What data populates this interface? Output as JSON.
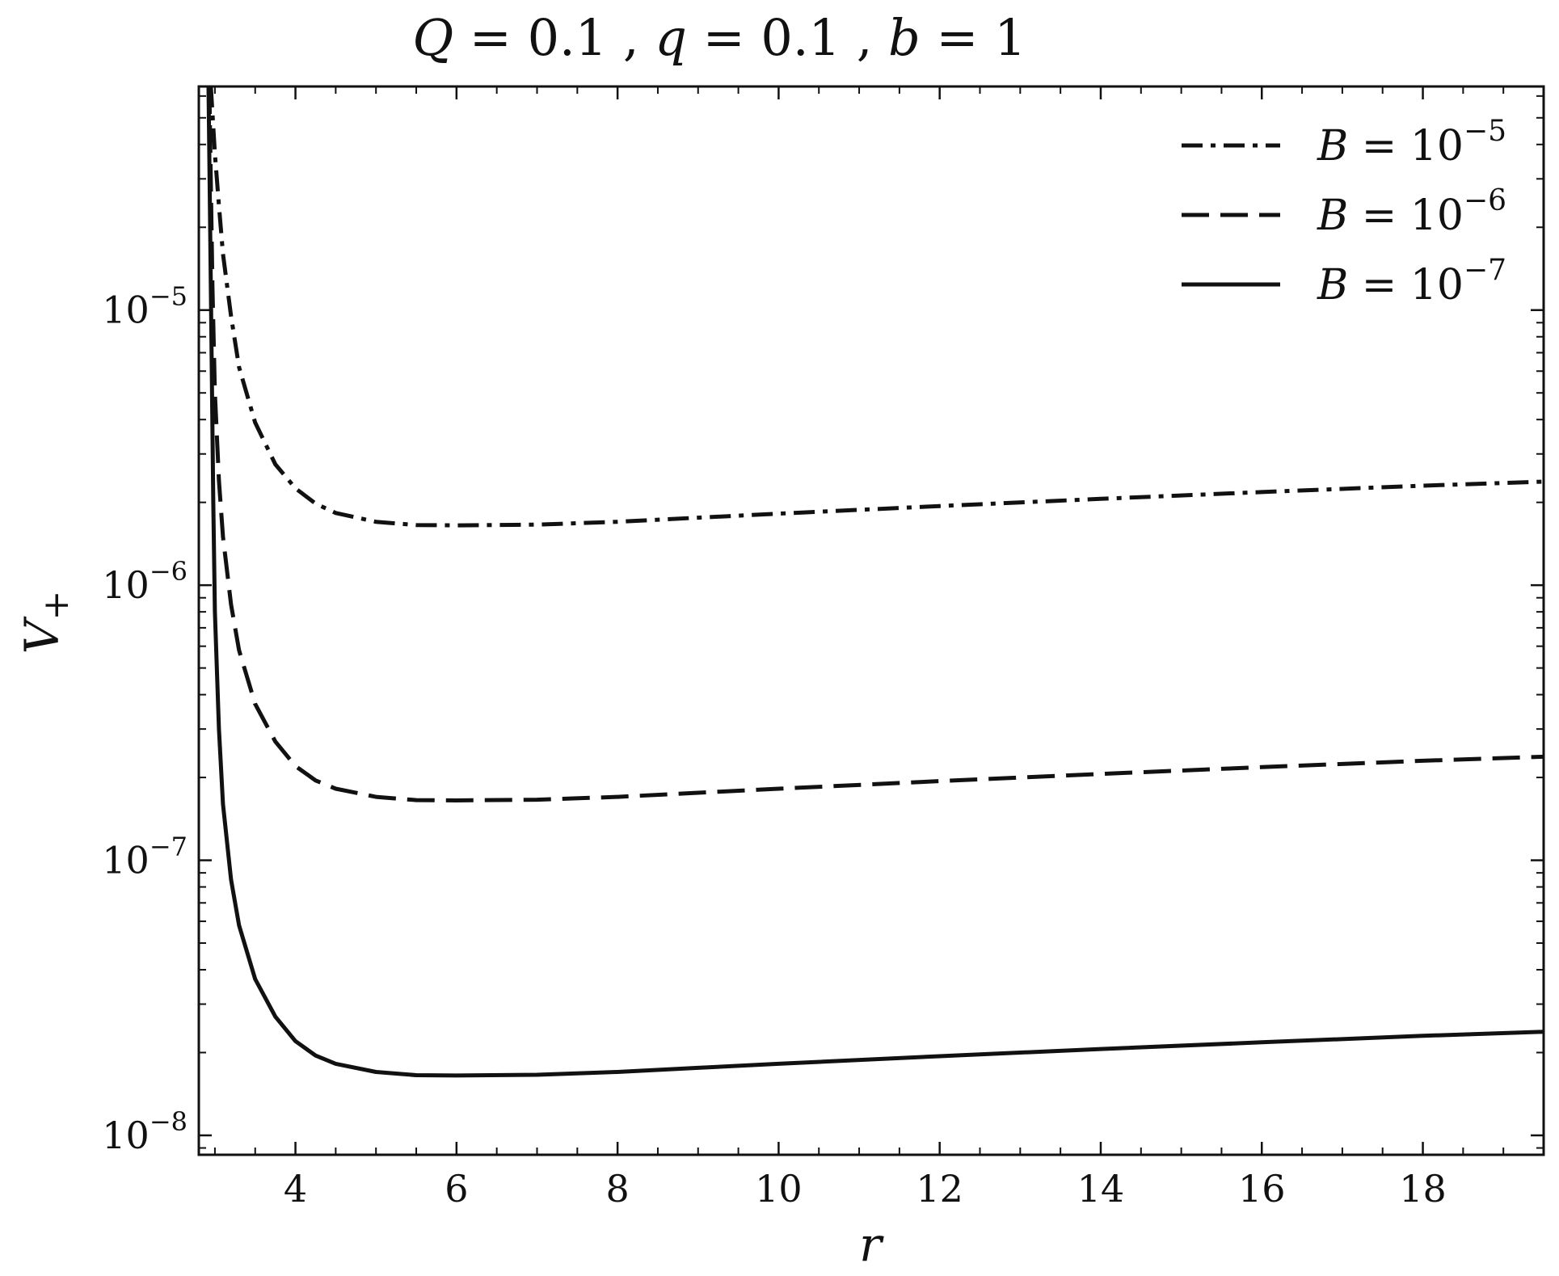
{
  "chart_data": {
    "type": "line",
    "title": {
      "Q": "0.1",
      "q": "0.1",
      "b": "1"
    },
    "xlabel": "r",
    "ylabel": "V",
    "ylabel_sub": "+",
    "xscale": "linear",
    "yscale": "log",
    "xlim": [
      2.8,
      19.5
    ],
    "ylim": [
      8.5e-09,
      6.5e-05
    ],
    "xticks": [
      4,
      6,
      8,
      10,
      12,
      14,
      16,
      18
    ],
    "yticks": [
      {
        "value": 1e-08,
        "base": "10",
        "exp": "−8"
      },
      {
        "value": 1e-07,
        "base": "10",
        "exp": "−7"
      },
      {
        "value": 1e-06,
        "base": "10",
        "exp": "−6"
      },
      {
        "value": 1e-05,
        "base": "10",
        "exp": "−5"
      }
    ],
    "grid": false,
    "legend_position": "top-right",
    "series": [
      {
        "name": "B = 10^−5",
        "legend_base": "10",
        "legend_exp": "−5",
        "style": "dashdot",
        "x": [
          2.95,
          3.0,
          3.05,
          3.1,
          3.2,
          3.3,
          3.5,
          3.75,
          4.0,
          4.25,
          4.5,
          5.0,
          5.5,
          6.0,
          7.0,
          8.0,
          9.0,
          10.0,
          12.0,
          14.0,
          16.0,
          18.0,
          19.5
        ],
        "y": [
          6.5e-05,
          3.7e-05,
          2.4e-05,
          1.6e-05,
          9.5e-06,
          6.2e-06,
          3.9e-06,
          2.75e-06,
          2.25e-06,
          1.98e-06,
          1.83e-06,
          1.7e-06,
          1.655e-06,
          1.65e-06,
          1.66e-06,
          1.7e-06,
          1.76e-06,
          1.82e-06,
          1.94e-06,
          2.06e-06,
          2.18e-06,
          2.3e-06,
          2.38e-06
        ]
      },
      {
        "name": "B = 10^−6",
        "legend_base": "10",
        "legend_exp": "−6",
        "style": "dashed",
        "x": [
          2.93,
          2.97,
          3.0,
          3.05,
          3.1,
          3.2,
          3.3,
          3.5,
          3.75,
          4.0,
          4.25,
          4.5,
          5.0,
          5.5,
          6.0,
          7.0,
          8.0,
          9.0,
          10.0,
          12.0,
          14.0,
          16.0,
          18.0,
          19.5
        ],
        "y": [
          6.5e-05,
          1.2e-05,
          5e-06,
          2.4e-06,
          1.5e-06,
          8.5e-07,
          5.8e-07,
          3.7e-07,
          2.7e-07,
          2.2e-07,
          1.95e-07,
          1.82e-07,
          1.7e-07,
          1.655e-07,
          1.65e-07,
          1.66e-07,
          1.7e-07,
          1.76e-07,
          1.82e-07,
          1.94e-07,
          2.06e-07,
          2.18e-07,
          2.3e-07,
          2.38e-07
        ]
      },
      {
        "name": "B = 10^−7",
        "legend_base": "10",
        "legend_exp": "−7",
        "style": "solid",
        "x": [
          2.92,
          2.95,
          2.98,
          3.0,
          3.05,
          3.1,
          3.2,
          3.3,
          3.5,
          3.75,
          4.0,
          4.25,
          4.5,
          5.0,
          5.5,
          6.0,
          7.0,
          8.0,
          9.0,
          10.0,
          12.0,
          14.0,
          16.0,
          18.0,
          19.5
        ],
        "y": [
          6.5e-05,
          1.2e-05,
          2e-06,
          8e-07,
          3e-07,
          1.6e-07,
          8.5e-08,
          5.8e-08,
          3.7e-08,
          2.7e-08,
          2.2e-08,
          1.95e-08,
          1.82e-08,
          1.7e-08,
          1.655e-08,
          1.65e-08,
          1.66e-08,
          1.7e-08,
          1.76e-08,
          1.82e-08,
          1.94e-08,
          2.06e-08,
          2.18e-08,
          2.3e-08,
          2.38e-08
        ]
      }
    ]
  }
}
